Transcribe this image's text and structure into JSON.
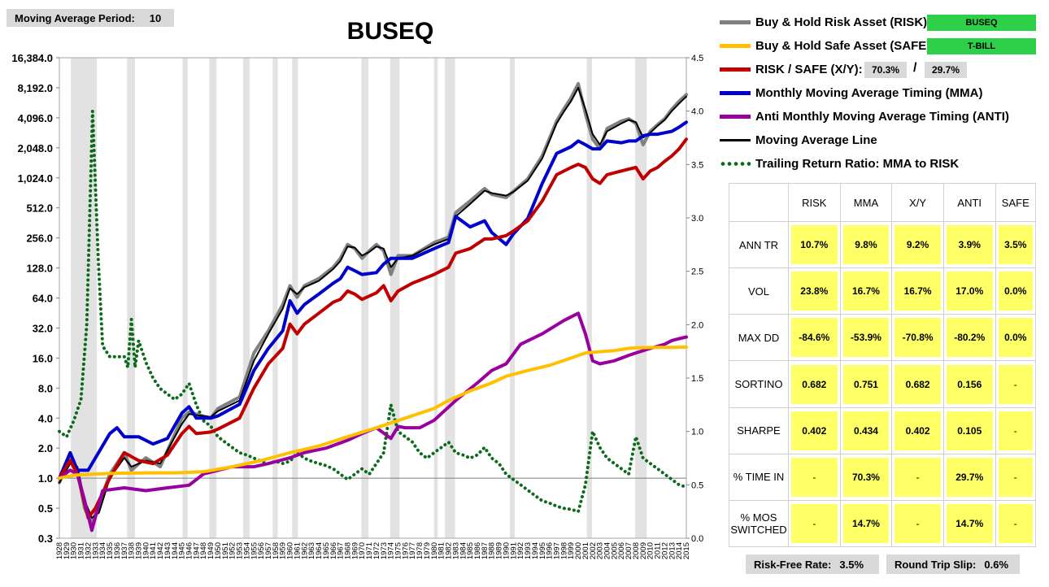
{
  "header": {
    "ma_period_label": "Moving Average Period:",
    "ma_period_value": "10",
    "title": "BUSEQ"
  },
  "legend": {
    "items": [
      {
        "label": "Buy & Hold Risk Asset (RISK):",
        "color": "#808080",
        "style": "line"
      },
      {
        "label": "Buy & Hold Safe Asset (SAFE):",
        "color": "#ffc000",
        "style": "line"
      },
      {
        "label": "RISK / SAFE (X/Y):",
        "color": "#c00000",
        "style": "line"
      },
      {
        "label": "Monthly Moving Average Timing (MMA)",
        "color": "#0000cc",
        "style": "line"
      },
      {
        "label": "Anti Monthly Moving Average Timing (ANTI)",
        "color": "#9900a0",
        "style": "line"
      },
      {
        "label": "Moving Average Line",
        "color": "#000000",
        "style": "line"
      },
      {
        "label": "Trailing Return Ratio: MMA to RISK",
        "color": "#0b6b1a",
        "style": "dotted"
      }
    ],
    "risk_asset": "BUSEQ",
    "safe_asset": "T-BILL",
    "ratio_x": "70.3%",
    "ratio_slash": "/",
    "ratio_y": "29.7%"
  },
  "stats": {
    "columns": [
      "RISK",
      "MMA",
      "X/Y",
      "ANTI",
      "SAFE"
    ],
    "rows": [
      {
        "label": "ANN TR",
        "values": [
          "10.7%",
          "9.8%",
          "9.2%",
          "3.9%",
          "3.5%"
        ]
      },
      {
        "label": "VOL",
        "values": [
          "23.8%",
          "16.7%",
          "16.7%",
          "17.0%",
          "0.0%"
        ]
      },
      {
        "label": "MAX DD",
        "values": [
          "-84.6%",
          "-53.9%",
          "-70.8%",
          "-80.2%",
          "0.0%"
        ]
      },
      {
        "label": "SORTINO",
        "values": [
          "0.682",
          "0.751",
          "0.682",
          "0.156",
          "-"
        ]
      },
      {
        "label": "SHARPE",
        "values": [
          "0.402",
          "0.434",
          "0.402",
          "0.105",
          "-"
        ]
      },
      {
        "label": "% TIME IN",
        "values": [
          "-",
          "70.3%",
          "-",
          "29.7%",
          "-"
        ]
      },
      {
        "label": "% MOS SWITCHED",
        "values": [
          "-",
          "14.7%",
          "-",
          "14.7%",
          "-"
        ]
      }
    ]
  },
  "footer": {
    "risk_free_label": "Risk-Free Rate:",
    "risk_free_value": "3.5%",
    "slip_label": "Round Trip Slip:",
    "slip_value": "0.6%"
  },
  "chart_data": {
    "type": "line",
    "title": "BUSEQ",
    "y_scale": "log2",
    "y_ticks": [
      "16,384.0",
      "8,192.0",
      "4,096.0",
      "2,048.0",
      "1,024.0",
      "512.0",
      "256.0",
      "128.0",
      "64.0",
      "32.0",
      "16.0",
      "8.0",
      "4.0",
      "2.0",
      "1.0",
      "0.5",
      "0.3"
    ],
    "y2_ticks": [
      "4.5",
      "4.0",
      "3.5",
      "3.0",
      "2.5",
      "2.0",
      "1.5",
      "1.0",
      "0.5",
      "0.0"
    ],
    "ylim": [
      0.25,
      16384
    ],
    "y2lim": [
      0,
      4.5
    ],
    "xlim": [
      1928,
      2015
    ],
    "x_ticks": [
      "1928",
      "1929",
      "1930",
      "1931",
      "1932",
      "1933",
      "1934",
      "1935",
      "1936",
      "1937",
      "1938",
      "1939",
      "1940",
      "1941",
      "1942",
      "1943",
      "1944",
      "1945",
      "1946",
      "1947",
      "1948",
      "1949",
      "1950",
      "1951",
      "1952",
      "1953",
      "1954",
      "1955",
      "1956",
      "1957",
      "1958",
      "1959",
      "1960",
      "1961",
      "1962",
      "1963",
      "1964",
      "1965",
      "1966",
      "1967",
      "1968",
      "1969",
      "1970",
      "1971",
      "1972",
      "1973",
      "1974",
      "1975",
      "1976",
      "1977",
      "1978",
      "1979",
      "1980",
      "1981",
      "1982",
      "1983",
      "1984",
      "1985",
      "1986",
      "1987",
      "1988",
      "1989",
      "1990",
      "1991",
      "1992",
      "1993",
      "1994",
      "1995",
      "1996",
      "1997",
      "1998",
      "1999",
      "2000",
      "2001",
      "2002",
      "2003",
      "2004",
      "2005",
      "2006",
      "2007",
      "2008",
      "2009",
      "2010",
      "2011",
      "2012",
      "2013",
      "2014",
      "2015"
    ],
    "recession_bands": [
      [
        1929.6,
        1933.2
      ],
      [
        1937.4,
        1938.5
      ],
      [
        1945.1,
        1945.8
      ],
      [
        1948.8,
        1949.8
      ],
      [
        1953.5,
        1954.4
      ],
      [
        1957.6,
        1958.3
      ],
      [
        1960.3,
        1961.1
      ],
      [
        1969.9,
        1970.9
      ],
      [
        1973.9,
        1975.2
      ],
      [
        1980.0,
        1980.5
      ],
      [
        1981.5,
        1982.9
      ],
      [
        1990.5,
        1991.2
      ],
      [
        2001.2,
        2001.9
      ],
      [
        2007.9,
        2009.5
      ]
    ],
    "series": [
      {
        "name": "Buy & Hold Risk Asset (RISK):",
        "color": "#808080",
        "axis": "left",
        "width": 4,
        "x": [
          1928,
          1929.5,
          1930.5,
          1931.5,
          1932.5,
          1933.3,
          1935,
          1937,
          1938,
          1940,
          1942,
          1945,
          1946,
          1949,
          1950,
          1953,
          1955,
          1957,
          1959,
          1960,
          1961,
          1962,
          1964,
          1966,
          1967,
          1968,
          1969,
          1970,
          1971,
          1972,
          1973,
          1974,
          1975,
          1977,
          1980,
          1982,
          1983,
          1985,
          1987,
          1988,
          1990,
          1991,
          1993,
          1995,
          1997,
          1998,
          1999,
          2000,
          2001,
          2002,
          2003,
          2004,
          2006,
          2007,
          2008,
          2009,
          2010,
          2011,
          2012,
          2013,
          2014,
          2015
        ],
        "y": [
          0.9,
          1.6,
          1.2,
          0.5,
          0.35,
          0.5,
          1.1,
          1.8,
          1.2,
          1.6,
          1.3,
          4.0,
          4.6,
          4.0,
          5.0,
          6.5,
          18,
          30,
          55,
          85,
          65,
          85,
          100,
          130,
          160,
          220,
          200,
          160,
          190,
          220,
          190,
          110,
          170,
          170,
          230,
          260,
          460,
          600,
          800,
          700,
          650,
          750,
          1000,
          1700,
          3800,
          5000,
          6500,
          9000,
          4500,
          2500,
          2000,
          3200,
          3800,
          4000,
          3600,
          2200,
          3000,
          3500,
          4000,
          5000,
          6000,
          7000
        ]
      },
      {
        "name": "Moving Average Line",
        "color": "#000000",
        "axis": "left",
        "width": 2,
        "x": [
          1928,
          1929.5,
          1930.5,
          1931.5,
          1932.5,
          1933.5,
          1935,
          1937,
          1938,
          1940,
          1942,
          1945,
          1946,
          1949,
          1950,
          1953,
          1955,
          1957,
          1959,
          1960,
          1961,
          1962,
          1964,
          1966,
          1967,
          1968,
          1969,
          1970,
          1971,
          1972,
          1973,
          1974,
          1975,
          1977,
          1980,
          1982,
          1983,
          1985,
          1987,
          1988,
          1990,
          1991,
          1993,
          1995,
          1997,
          1998,
          1999,
          2000,
          2001,
          2002,
          2003,
          2004,
          2006,
          2007,
          2008,
          2009,
          2010,
          2011,
          2012,
          2013,
          2014,
          2015
        ],
        "y": [
          0.9,
          1.4,
          1.3,
          0.6,
          0.4,
          0.45,
          1.0,
          1.6,
          1.3,
          1.5,
          1.4,
          3.5,
          4.4,
          4.1,
          4.7,
          6.0,
          15,
          28,
          50,
          80,
          70,
          82,
          95,
          125,
          150,
          210,
          205,
          170,
          185,
          210,
          200,
          130,
          160,
          170,
          220,
          250,
          420,
          560,
          760,
          720,
          680,
          740,
          960,
          1600,
          3600,
          4700,
          6000,
          8200,
          5000,
          2800,
          2200,
          3000,
          3600,
          3900,
          3700,
          2600,
          2900,
          3400,
          3900,
          4800,
          5700,
          6700
        ]
      },
      {
        "name": "Monthly Moving Average Timing (MMA)",
        "color": "#0000cc",
        "axis": "left",
        "width": 4,
        "x": [
          1928,
          1929.5,
          1930.5,
          1932,
          1935,
          1936,
          1937,
          1939,
          1941,
          1943,
          1945,
          1946,
          1947,
          1949,
          1950,
          1953,
          1955,
          1957,
          1959,
          1960,
          1961,
          1962,
          1964,
          1966,
          1967,
          1968,
          1969,
          1970,
          1972,
          1973,
          1974,
          1976,
          1977,
          1980,
          1982,
          1983,
          1985,
          1987,
          1988,
          1990,
          1991,
          1993,
          1995,
          1997,
          1999,
          2000,
          2001,
          2002,
          2003,
          2004,
          2006,
          2007,
          2008,
          2009,
          2010,
          2011,
          2012,
          2013,
          2014,
          2015
        ],
        "y": [
          1.0,
          1.8,
          1.2,
          1.2,
          2.8,
          3.2,
          2.6,
          2.6,
          2.2,
          2.5,
          4.5,
          5.2,
          4.0,
          4.0,
          4.2,
          5.5,
          12,
          20,
          30,
          60,
          45,
          55,
          70,
          90,
          100,
          130,
          120,
          110,
          115,
          140,
          160,
          160,
          160,
          200,
          230,
          420,
          330,
          380,
          290,
          220,
          280,
          400,
          900,
          1800,
          2100,
          2400,
          2200,
          2000,
          2000,
          2400,
          2300,
          2400,
          2400,
          2700,
          2800,
          2800,
          2900,
          3000,
          3300,
          3700
        ]
      },
      {
        "name": "RISK / SAFE (X/Y):",
        "color": "#c00000",
        "axis": "left",
        "width": 4,
        "x": [
          1928,
          1929.5,
          1930.5,
          1932,
          1933,
          1935,
          1937,
          1939,
          1941,
          1943,
          1945,
          1946,
          1947,
          1949,
          1950,
          1953,
          1955,
          1957,
          1959,
          1960,
          1961,
          1962,
          1964,
          1966,
          1967,
          1968,
          1969,
          1970,
          1972,
          1973,
          1974,
          1975,
          1977,
          1980,
          1982,
          1983,
          1985,
          1987,
          1988,
          1990,
          1991,
          1993,
          1995,
          1997,
          1999,
          2000,
          2001,
          2002,
          2003,
          2004,
          2006,
          2007,
          2008,
          2009,
          2010,
          2011,
          2012,
          2013,
          2014,
          2015
        ],
        "y": [
          1.0,
          1.5,
          1.1,
          0.4,
          0.5,
          1.0,
          1.8,
          1.5,
          1.4,
          1.7,
          2.8,
          3.3,
          2.8,
          2.9,
          3.1,
          4.0,
          8,
          14,
          20,
          35,
          28,
          35,
          45,
          58,
          62,
          75,
          70,
          62,
          72,
          85,
          60,
          75,
          90,
          110,
          130,
          180,
          200,
          250,
          250,
          270,
          300,
          380,
          600,
          1100,
          1300,
          1400,
          1300,
          1000,
          900,
          1100,
          1200,
          1250,
          1300,
          1000,
          1200,
          1300,
          1500,
          1700,
          2000,
          2500
        ]
      },
      {
        "name": "Anti Monthly Moving Average Timing (ANTI)",
        "color": "#9900a0",
        "axis": "left",
        "width": 4,
        "x": [
          1928,
          1929.5,
          1930.5,
          1931.5,
          1932.5,
          1934,
          1937,
          1940,
          1943,
          1946,
          1948,
          1950,
          1952,
          1955,
          1957,
          1960,
          1962,
          1965,
          1968,
          1970,
          1972,
          1974,
          1975,
          1976,
          1978,
          1980,
          1983,
          1986,
          1988,
          1990,
          1992,
          1995,
          1998,
          2000,
          2001,
          2002,
          2003,
          2005,
          2007,
          2008,
          2010,
          2012,
          2013,
          2014,
          2015
        ],
        "y": [
          1.0,
          1.2,
          1.1,
          0.6,
          0.3,
          0.75,
          0.8,
          0.75,
          0.8,
          0.85,
          1.1,
          1.2,
          1.3,
          1.3,
          1.4,
          1.6,
          1.8,
          2.0,
          2.4,
          2.8,
          3.2,
          2.5,
          3.3,
          3.2,
          3.2,
          3.8,
          6.0,
          9,
          12,
          14,
          22,
          28,
          38,
          45,
          28,
          15,
          14,
          15,
          17,
          18,
          20,
          22,
          24,
          25,
          26
        ]
      },
      {
        "name": "Buy & Hold Safe Asset (SAFE):",
        "color": "#ffc000",
        "axis": "left",
        "width": 4,
        "x": [
          1928,
          1930,
          1933,
          1936,
          1940,
          1944,
          1948,
          1952,
          1956,
          1960,
          1964,
          1968,
          1972,
          1976,
          1980,
          1982,
          1985,
          1988,
          1990,
          1993,
          1996,
          1999,
          2001,
          2003,
          2005,
          2007,
          2008,
          2010,
          2013,
          2015
        ],
        "y": [
          1.0,
          1.07,
          1.1,
          1.12,
          1.13,
          1.13,
          1.16,
          1.3,
          1.5,
          1.8,
          2.1,
          2.6,
          3.2,
          4.0,
          5.0,
          6.0,
          7.5,
          9,
          10.5,
          12,
          13.5,
          16,
          18,
          18.5,
          19,
          20,
          20.3,
          20.4,
          20.5,
          20.6
        ]
      },
      {
        "name": "Trailing Return Ratio: MMA to RISK",
        "color": "#0b6b1a",
        "axis": "right",
        "width": 4,
        "style": "dotted",
        "x": [
          1928,
          1929,
          1930,
          1931,
          1931.8,
          1932.6,
          1933.4,
          1934,
          1935,
          1936,
          1937,
          1937.5,
          1938,
          1938.5,
          1939,
          1940,
          1941,
          1942,
          1943,
          1944,
          1945,
          1946,
          1947,
          1948,
          1949,
          1950,
          1951,
          1952,
          1953,
          1954,
          1955,
          1956,
          1957,
          1958,
          1959,
          1960,
          1961,
          1962,
          1963,
          1964,
          1965,
          1966,
          1967,
          1968,
          1969,
          1970,
          1971,
          1972,
          1973,
          1974,
          1975,
          1976,
          1977,
          1978,
          1979,
          1980,
          1981,
          1982,
          1983,
          1984,
          1985,
          1986,
          1987,
          1988,
          1989,
          1990,
          1991,
          1992,
          1993,
          1994,
          1995,
          1996,
          1997,
          1998,
          1999,
          2000,
          2001,
          2002,
          2003,
          2004,
          2005,
          2006,
          2007,
          2008,
          2009,
          2010,
          2011,
          2012,
          2013,
          2014,
          2015
        ],
        "y": [
          1.0,
          0.95,
          1.1,
          1.3,
          2.0,
          4.0,
          2.6,
          1.8,
          1.7,
          1.7,
          1.7,
          1.6,
          2.05,
          1.6,
          1.85,
          1.65,
          1.5,
          1.4,
          1.35,
          1.3,
          1.35,
          1.45,
          1.25,
          1.1,
          1.05,
          0.95,
          0.9,
          0.85,
          0.8,
          0.78,
          0.75,
          0.72,
          0.7,
          0.72,
          0.7,
          0.72,
          0.8,
          0.75,
          0.72,
          0.7,
          0.68,
          0.65,
          0.6,
          0.55,
          0.6,
          0.65,
          0.6,
          0.7,
          0.8,
          1.25,
          1.0,
          0.95,
          0.9,
          0.8,
          0.75,
          0.8,
          0.85,
          0.9,
          0.8,
          0.78,
          0.75,
          0.78,
          0.85,
          0.75,
          0.7,
          0.6,
          0.55,
          0.5,
          0.45,
          0.4,
          0.35,
          0.33,
          0.3,
          0.28,
          0.27,
          0.25,
          0.5,
          1.0,
          0.85,
          0.75,
          0.7,
          0.65,
          0.6,
          0.95,
          0.75,
          0.7,
          0.65,
          0.6,
          0.55,
          0.5,
          0.48
        ]
      }
    ]
  }
}
